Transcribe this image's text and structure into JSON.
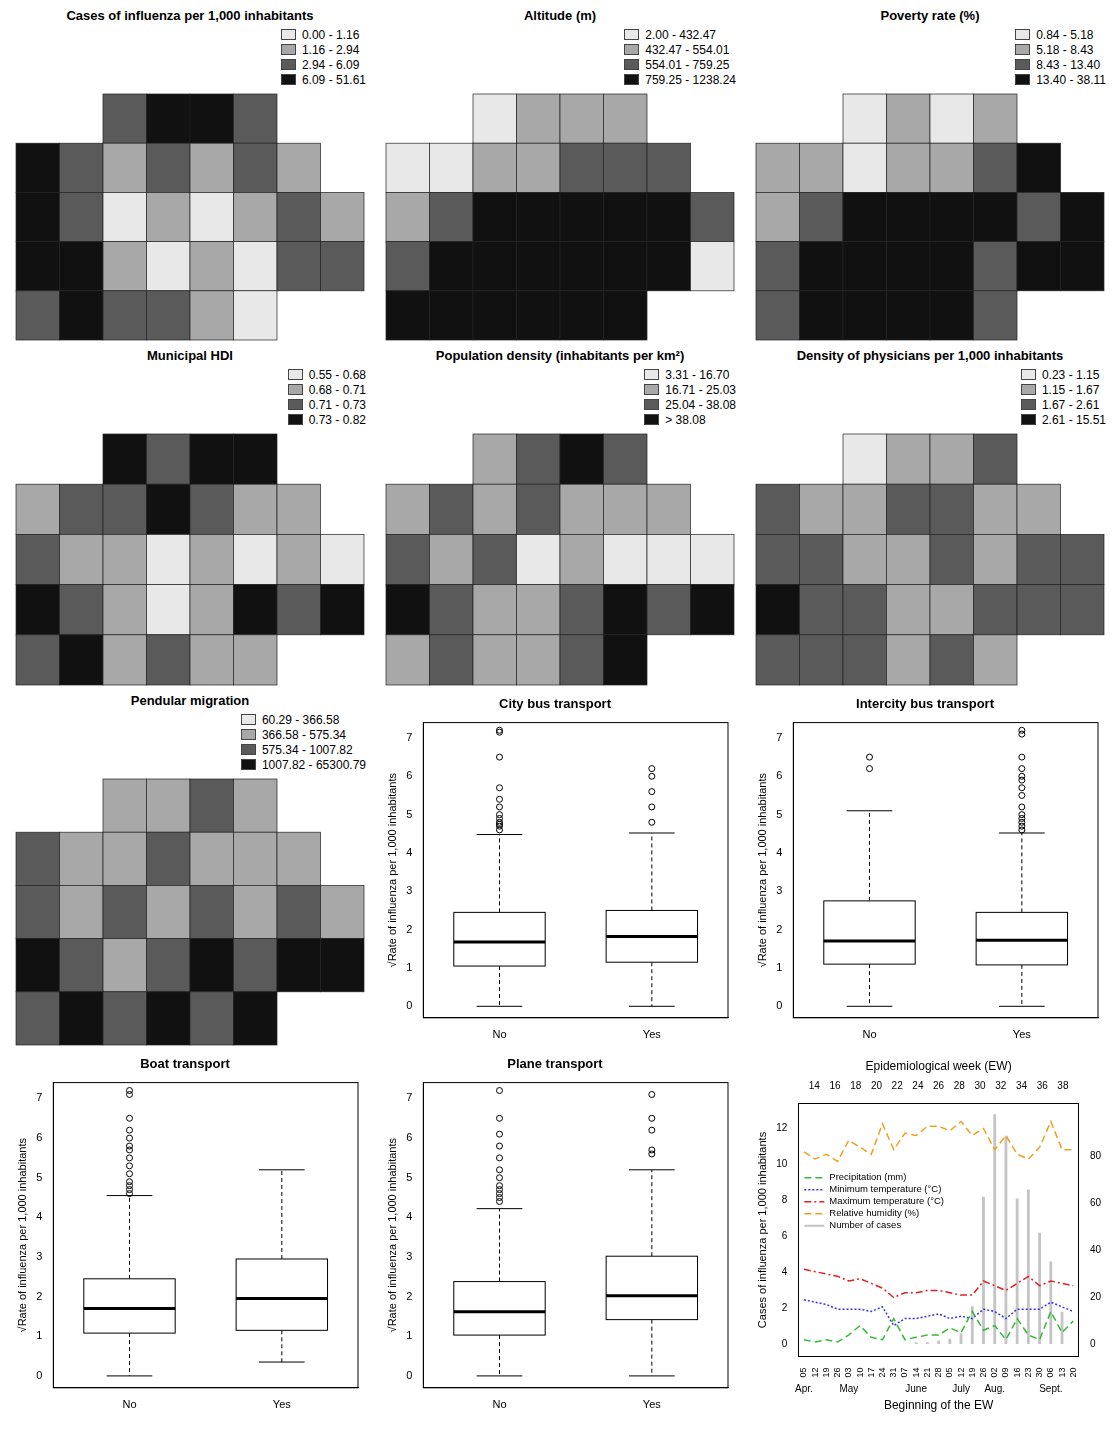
{
  "chart_data": [
    {
      "type": "map",
      "title": "Cases of influenza per 1,000 inhabitants",
      "tick_labels": false,
      "classes": [
        "0.00 - 1.16",
        "1.16 - 2.94",
        "2.94 - 6.09",
        "6.09 - 51.61"
      ],
      "colors": [
        "#e8e8e8",
        "#a8a8a8",
        "#5a5a5a",
        "#111111"
      ],
      "cells": [
        [
          null,
          null,
          2,
          3,
          3,
          2,
          null,
          null
        ],
        [
          3,
          2,
          1,
          2,
          1,
          2,
          1,
          null
        ],
        [
          3,
          2,
          0,
          1,
          0,
          1,
          2,
          1
        ],
        [
          3,
          3,
          1,
          0,
          1,
          0,
          2,
          2
        ],
        [
          2,
          3,
          2,
          2,
          1,
          0,
          null,
          null
        ]
      ]
    },
    {
      "type": "map",
      "title": "Altitude (m)",
      "tick_labels": false,
      "classes": [
        "2.00 - 432.47",
        "432.47 - 554.01",
        "554.01 - 759.25",
        "759.25 - 1238.24"
      ],
      "colors": [
        "#e8e8e8",
        "#a8a8a8",
        "#5a5a5a",
        "#111111"
      ],
      "cells": [
        [
          null,
          null,
          0,
          1,
          1,
          1,
          null,
          null
        ],
        [
          0,
          0,
          1,
          1,
          2,
          2,
          2,
          null
        ],
        [
          1,
          2,
          3,
          3,
          3,
          3,
          3,
          2
        ],
        [
          2,
          3,
          3,
          3,
          3,
          3,
          3,
          0
        ],
        [
          3,
          3,
          3,
          3,
          3,
          3,
          null,
          null
        ]
      ]
    },
    {
      "type": "map",
      "title": "Poverty rate (%)",
      "tick_labels": false,
      "classes": [
        "0.84 - 5.18",
        "5.18 - 8.43",
        "8.43 - 13.40",
        "13.40 - 38.11"
      ],
      "colors": [
        "#e8e8e8",
        "#a8a8a8",
        "#5a5a5a",
        "#111111"
      ],
      "cells": [
        [
          null,
          null,
          0,
          1,
          0,
          1,
          null,
          null
        ],
        [
          1,
          1,
          0,
          1,
          1,
          2,
          3,
          null
        ],
        [
          1,
          2,
          3,
          3,
          3,
          3,
          2,
          3
        ],
        [
          2,
          3,
          3,
          3,
          3,
          2,
          3,
          3
        ],
        [
          2,
          3,
          3,
          3,
          3,
          2,
          null,
          null
        ]
      ]
    },
    {
      "type": "map",
      "title": "Municipal HDI",
      "tick_labels": false,
      "classes": [
        "0.55 - 0.68",
        "0.68 - 0.71",
        "0.71 - 0.73",
        "0.73 - 0.82"
      ],
      "colors": [
        "#e8e8e8",
        "#a8a8a8",
        "#5a5a5a",
        "#111111"
      ],
      "cells": [
        [
          null,
          null,
          3,
          2,
          3,
          3,
          null,
          null
        ],
        [
          1,
          2,
          2,
          3,
          2,
          1,
          1,
          null
        ],
        [
          2,
          1,
          1,
          0,
          1,
          0,
          1,
          0
        ],
        [
          3,
          2,
          1,
          0,
          1,
          3,
          2,
          3
        ],
        [
          2,
          3,
          1,
          2,
          1,
          1,
          null,
          null
        ]
      ]
    },
    {
      "type": "map",
      "title": "Population density (inhabitants per km²)",
      "tick_labels": false,
      "classes": [
        "3.31 - 16.70",
        "16.71 - 25.03",
        "25.04 - 38.08",
        "> 38.08"
      ],
      "colors": [
        "#e8e8e8",
        "#a8a8a8",
        "#5a5a5a",
        "#111111"
      ],
      "cells": [
        [
          null,
          null,
          1,
          2,
          3,
          2,
          null,
          null
        ],
        [
          1,
          2,
          1,
          2,
          1,
          1,
          1,
          null
        ],
        [
          2,
          1,
          2,
          0,
          1,
          0,
          0,
          0
        ],
        [
          3,
          2,
          1,
          1,
          2,
          3,
          2,
          3
        ],
        [
          1,
          2,
          1,
          1,
          2,
          3,
          null,
          null
        ]
      ]
    },
    {
      "type": "map",
      "title": "Density of physicians per 1,000 inhabitants",
      "tick_labels": false,
      "classes": [
        "0.23 - 1.15",
        "1.15 - 1.67",
        "1.67 - 2.61",
        "2.61 - 15.51"
      ],
      "colors": [
        "#e8e8e8",
        "#a8a8a8",
        "#5a5a5a",
        "#111111"
      ],
      "cells": [
        [
          null,
          null,
          0,
          1,
          1,
          2,
          null,
          null
        ],
        [
          2,
          1,
          1,
          2,
          2,
          1,
          1,
          null
        ],
        [
          2,
          2,
          1,
          1,
          2,
          1,
          2,
          2
        ],
        [
          3,
          2,
          2,
          1,
          1,
          2,
          2,
          2
        ],
        [
          2,
          2,
          2,
          1,
          2,
          1,
          null,
          null
        ]
      ]
    },
    {
      "type": "map",
      "title": "Pendular migration",
      "tick_labels": false,
      "classes": [
        "60.29 - 366.58",
        "366.58 - 575.34",
        "575.34 - 1007.82",
        "1007.82 - 65300.79"
      ],
      "colors": [
        "#e8e8e8",
        "#a8a8a8",
        "#5a5a5a",
        "#111111"
      ],
      "cells": [
        [
          null,
          null,
          1,
          1,
          2,
          1,
          null,
          null
        ],
        [
          2,
          1,
          1,
          2,
          1,
          1,
          1,
          null
        ],
        [
          2,
          1,
          2,
          1,
          2,
          1,
          2,
          1
        ],
        [
          3,
          2,
          1,
          2,
          3,
          2,
          3,
          3
        ],
        [
          2,
          3,
          2,
          3,
          2,
          3,
          null,
          null
        ]
      ]
    },
    {
      "type": "boxplot",
      "title": "City bus transport",
      "ylabel": "√Rate of influenza per 1,000 inhabitants",
      "categories": [
        "No",
        "Yes"
      ],
      "color": "#000000",
      "ylim": [
        -0.3,
        7.4
      ],
      "yticks": [
        0,
        1,
        2,
        3,
        4,
        5,
        6,
        7
      ],
      "boxes": [
        {
          "whisker_low": 0,
          "q1": 1.05,
          "median": 1.68,
          "q3": 2.45,
          "whisker_high": 4.48,
          "outliers": [
            4.6,
            4.7,
            4.75,
            4.8,
            4.9,
            5.0,
            5.2,
            5.4,
            5.7,
            6.5,
            7.15,
            7.2
          ]
        },
        {
          "whisker_low": 0,
          "q1": 1.15,
          "median": 1.82,
          "q3": 2.5,
          "whisker_high": 4.52,
          "outliers": [
            4.8,
            5.2,
            5.6,
            6.0,
            6.2
          ]
        }
      ]
    },
    {
      "type": "boxplot",
      "title": "Intercity bus transport",
      "ylabel": "√Rate of influenza per 1,000 inhabitants",
      "categories": [
        "No",
        "Yes"
      ],
      "color": "#000000",
      "ylim": [
        -0.3,
        7.4
      ],
      "yticks": [
        0,
        1,
        2,
        3,
        4,
        5,
        6,
        7
      ],
      "boxes": [
        {
          "whisker_low": 0,
          "q1": 1.1,
          "median": 1.7,
          "q3": 2.75,
          "whisker_high": 5.1,
          "outliers": [
            6.2,
            6.5
          ]
        },
        {
          "whisker_low": 0,
          "q1": 1.08,
          "median": 1.72,
          "q3": 2.45,
          "whisker_high": 4.52,
          "outliers": [
            4.6,
            4.7,
            4.8,
            4.9,
            5.0,
            5.2,
            5.5,
            5.7,
            5.9,
            6.0,
            6.2,
            6.5,
            7.1,
            7.2
          ]
        }
      ]
    },
    {
      "type": "boxplot",
      "title": "Boat transport",
      "ylabel": "√Rate of influenza per 1,000 inhabitants",
      "categories": [
        "No",
        "Yes"
      ],
      "color": "#000000",
      "ylim": [
        -0.3,
        7.4
      ],
      "yticks": [
        0,
        1,
        2,
        3,
        4,
        5,
        6,
        7
      ],
      "boxes": [
        {
          "whisker_low": 0,
          "q1": 1.08,
          "median": 1.7,
          "q3": 2.45,
          "whisker_high": 4.55,
          "outliers": [
            4.6,
            4.7,
            4.8,
            4.9,
            5.1,
            5.3,
            5.5,
            5.7,
            5.8,
            6.0,
            6.2,
            6.5,
            7.1,
            7.2
          ]
        },
        {
          "whisker_low": 0.35,
          "q1": 1.15,
          "median": 1.95,
          "q3": 2.95,
          "whisker_high": 5.2,
          "outliers": []
        }
      ]
    },
    {
      "type": "boxplot",
      "title": "Plane transport",
      "ylabel": "√Rate of influenza per 1,000 inhabitants",
      "categories": [
        "No",
        "Yes"
      ],
      "color": "#000000",
      "ylim": [
        -0.3,
        7.4
      ],
      "yticks": [
        0,
        1,
        2,
        3,
        4,
        5,
        6,
        7
      ],
      "boxes": [
        {
          "whisker_low": 0,
          "q1": 1.03,
          "median": 1.62,
          "q3": 2.38,
          "whisker_high": 4.22,
          "outliers": [
            4.4,
            4.5,
            4.6,
            4.7,
            4.8,
            5.0,
            5.2,
            5.5,
            5.8,
            6.1,
            6.5,
            7.2
          ]
        },
        {
          "whisker_low": 0,
          "q1": 1.42,
          "median": 2.02,
          "q3": 3.02,
          "whisker_high": 5.2,
          "outliers": [
            5.6,
            5.7,
            6.2,
            6.5,
            7.1
          ]
        }
      ]
    },
    {
      "type": "bar",
      "xlabel": "Beginning of the EW",
      "x2label": "Epidemiological week (EW)",
      "ylabel": "Cases of influenza per 1,000 inhabitants",
      "legend": "left",
      "categories": [
        "05",
        "12",
        "19",
        "26",
        "03",
        "10",
        "17",
        "24",
        "31",
        "07",
        "14",
        "21",
        "28",
        "05",
        "12",
        "19",
        "26",
        "02",
        "09",
        "16",
        "23",
        "30",
        "06",
        "13",
        "20"
      ],
      "month_labels": [
        "Apr.",
        null,
        null,
        null,
        "May",
        null,
        null,
        null,
        null,
        null,
        "June",
        null,
        null,
        null,
        "July",
        null,
        null,
        "Aug.",
        null,
        null,
        null,
        null,
        "Sept.",
        null,
        null
      ],
      "x2lim": [
        13.5,
        38.5
      ],
      "x2ticks": [
        14,
        16,
        18,
        20,
        22,
        24,
        26,
        28,
        30,
        32,
        34,
        36,
        38
      ],
      "ylim": [
        -0.7,
        13.4
      ],
      "yticks": [
        0,
        2,
        4,
        6,
        8,
        10,
        12
      ],
      "y2lim": [
        -5.2,
        102.7
      ],
      "y2ticks": [
        0,
        20,
        40,
        60,
        80
      ],
      "series": [
        {
          "name": "Precipitation (mm)",
          "type": "line",
          "color": "#33bb33",
          "line_style": "dashed",
          "axis": "y2",
          "values": [
            2,
            1,
            2,
            1,
            4,
            8,
            3,
            2,
            11,
            2,
            3,
            4,
            4,
            7,
            5,
            14,
            6,
            8,
            2,
            11,
            4,
            2,
            14,
            5,
            10
          ]
        },
        {
          "name": "Minimum temperature (°C)",
          "type": "line",
          "color": "#3333ee",
          "line_style": "dotted",
          "axis": "y2",
          "values": [
            19,
            18,
            17,
            15,
            15,
            15,
            14,
            16,
            8,
            11,
            11,
            12,
            13,
            11,
            12,
            11,
            15,
            14,
            11,
            15,
            15,
            15,
            18,
            16,
            14
          ]
        },
        {
          "name": "Maximum temperature (°C)",
          "type": "line",
          "color": "#dd2222",
          "line_style": "dashdot",
          "axis": "y2",
          "values": [
            32,
            31,
            30,
            29,
            27,
            28,
            26,
            24,
            20,
            22,
            22,
            23,
            23,
            22,
            21,
            21,
            27,
            25,
            23,
            26,
            29,
            25,
            27,
            26,
            25
          ]
        },
        {
          "name": "Relative humidity (%)",
          "type": "line",
          "color": "#f0a020",
          "line_style": "dashed",
          "axis": "y2",
          "values": [
            82,
            79,
            81,
            78,
            87,
            84,
            81,
            94,
            83,
            90,
            89,
            93,
            93,
            91,
            95,
            89,
            92,
            83,
            89,
            81,
            79,
            84,
            95,
            83,
            83
          ]
        },
        {
          "name": "Number of cases",
          "type": "bar",
          "color": "#c4c4c4",
          "values": [
            0,
            0,
            0,
            0,
            0,
            0,
            0,
            0,
            0,
            0,
            0.1,
            0.1,
            0.2,
            0.3,
            0.6,
            2.1,
            8.2,
            12.8,
            11.6,
            8.1,
            8.6,
            6.2,
            4.6,
            1.8,
            0
          ]
        }
      ]
    }
  ]
}
